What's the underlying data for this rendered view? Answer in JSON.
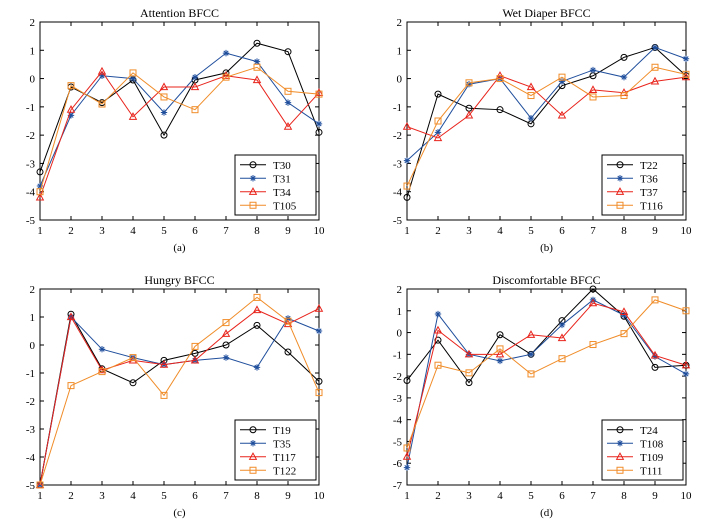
{
  "chart_data": [
    {
      "type": "line",
      "title": "Attention BFCC",
      "caption": "(a)",
      "xlabel": "",
      "ylabel": "",
      "x": [
        1,
        2,
        3,
        4,
        5,
        6,
        7,
        8,
        9,
        10
      ],
      "xlim": [
        1,
        10
      ],
      "ylim": [
        -5,
        2
      ],
      "xticks": [
        1,
        2,
        3,
        4,
        5,
        6,
        7,
        8,
        9,
        10
      ],
      "yticks": [
        2,
        1,
        0,
        -1,
        -2,
        -3,
        -4,
        -5
      ],
      "legend_position": "bottom-right",
      "series": [
        {
          "name": "T30",
          "color": "#000000",
          "marker": "circle",
          "values": [
            -3.3,
            -0.3,
            -0.85,
            -0.05,
            -2.0,
            -0.05,
            0.2,
            1.25,
            0.95,
            -1.9
          ]
        },
        {
          "name": "T31",
          "color": "#1f4e9c",
          "marker": "star",
          "values": [
            -3.8,
            -1.3,
            0.1,
            0.0,
            -1.2,
            0.05,
            0.9,
            0.6,
            -0.85,
            -1.6
          ]
        },
        {
          "name": "T34",
          "color": "#e8231b",
          "marker": "triangle",
          "values": [
            -4.2,
            -1.1,
            0.25,
            -1.35,
            -0.3,
            -0.3,
            0.1,
            -0.05,
            -1.7,
            -0.5
          ]
        },
        {
          "name": "T105",
          "color": "#f08c28",
          "marker": "square",
          "values": [
            -4.0,
            -0.25,
            -0.9,
            0.2,
            -0.65,
            -1.1,
            0.05,
            0.4,
            -0.45,
            -0.55
          ]
        }
      ]
    },
    {
      "type": "line",
      "title": "Wet Diaper BFCC",
      "caption": "(b)",
      "xlabel": "",
      "ylabel": "",
      "x": [
        1,
        2,
        3,
        4,
        5,
        6,
        7,
        8,
        9,
        10
      ],
      "xlim": [
        1,
        10
      ],
      "ylim": [
        -5,
        2
      ],
      "xticks": [
        1,
        2,
        3,
        4,
        5,
        6,
        7,
        8,
        9,
        10
      ],
      "yticks": [
        2,
        1,
        0,
        -1,
        -2,
        -3,
        -4,
        -5
      ],
      "legend_position": "bottom-right",
      "series": [
        {
          "name": "T22",
          "color": "#000000",
          "marker": "circle",
          "values": [
            -4.2,
            -0.55,
            -1.05,
            -1.1,
            -1.6,
            -0.25,
            0.1,
            0.75,
            1.1,
            0.1
          ]
        },
        {
          "name": "T36",
          "color": "#1f4e9c",
          "marker": "star",
          "values": [
            -2.9,
            -1.9,
            -0.2,
            0.0,
            -1.4,
            -0.1,
            0.3,
            0.05,
            1.1,
            0.7
          ]
        },
        {
          "name": "T37",
          "color": "#e8231b",
          "marker": "triangle",
          "values": [
            -1.7,
            -2.1,
            -1.3,
            0.1,
            -0.3,
            -1.3,
            -0.4,
            -0.5,
            -0.1,
            0.05
          ]
        },
        {
          "name": "T116",
          "color": "#f08c28",
          "marker": "square",
          "values": [
            -3.8,
            -1.5,
            -0.15,
            0.0,
            -0.6,
            0.05,
            -0.65,
            -0.6,
            0.4,
            0.15
          ]
        }
      ]
    },
    {
      "type": "line",
      "title": "Hungry BFCC",
      "caption": "(c)",
      "xlabel": "",
      "ylabel": "",
      "x": [
        1,
        2,
        3,
        4,
        5,
        6,
        7,
        8,
        9,
        10
      ],
      "xlim": [
        1,
        10
      ],
      "ylim": [
        -5,
        2
      ],
      "xticks": [
        1,
        2,
        3,
        4,
        5,
        6,
        7,
        8,
        9,
        10
      ],
      "yticks": [
        2,
        1,
        0,
        -1,
        -2,
        -3,
        -4,
        -5
      ],
      "legend_position": "bottom-right",
      "series": [
        {
          "name": "T19",
          "color": "#000000",
          "marker": "circle",
          "values": [
            -5.0,
            1.1,
            -0.85,
            -1.35,
            -0.55,
            -0.3,
            0.0,
            0.7,
            -0.25,
            -1.3
          ]
        },
        {
          "name": "T35",
          "color": "#1f4e9c",
          "marker": "star",
          "values": [
            -5.0,
            1.0,
            -0.15,
            -0.45,
            -0.7,
            -0.55,
            -0.45,
            -0.8,
            0.95,
            0.5
          ]
        },
        {
          "name": "T117",
          "color": "#e8231b",
          "marker": "triangle",
          "values": [
            -5.0,
            1.0,
            -0.9,
            -0.55,
            -0.7,
            -0.55,
            0.4,
            1.25,
            0.75,
            1.3
          ]
        },
        {
          "name": "T122",
          "color": "#f08c28",
          "marker": "square",
          "values": [
            -5.0,
            -1.45,
            -0.95,
            -0.45,
            -1.8,
            -0.05,
            0.8,
            1.7,
            0.85,
            -1.7
          ]
        }
      ]
    },
    {
      "type": "line",
      "title": "Discomfortable BFCC",
      "caption": "(d)",
      "xlabel": "",
      "ylabel": "",
      "x": [
        1,
        2,
        3,
        4,
        5,
        6,
        7,
        8,
        9,
        10
      ],
      "xlim": [
        1,
        10
      ],
      "ylim": [
        -7,
        2
      ],
      "xticks": [
        1,
        2,
        3,
        4,
        5,
        6,
        7,
        8,
        9,
        10
      ],
      "yticks": [
        2,
        1,
        0,
        -1,
        -2,
        -3,
        -4,
        -5,
        -6,
        -7
      ],
      "legend_position": "bottom-right",
      "series": [
        {
          "name": "T24",
          "color": "#000000",
          "marker": "circle",
          "values": [
            -2.2,
            -0.35,
            -2.3,
            -0.1,
            -1.0,
            0.55,
            2.0,
            0.75,
            -1.6,
            -1.5
          ]
        },
        {
          "name": "T108",
          "color": "#1f4e9c",
          "marker": "star",
          "values": [
            -6.2,
            0.85,
            -1.0,
            -1.3,
            -1.0,
            0.35,
            1.5,
            0.8,
            -1.1,
            -1.9
          ]
        },
        {
          "name": "T109",
          "color": "#e8231b",
          "marker": "triangle",
          "values": [
            -5.7,
            0.1,
            -1.0,
            -1.0,
            -0.1,
            -0.25,
            1.35,
            0.95,
            -1.05,
            -1.5
          ]
        },
        {
          "name": "T111",
          "color": "#f08c28",
          "marker": "square",
          "values": [
            -5.3,
            -1.5,
            -1.85,
            -0.75,
            -1.9,
            -1.2,
            -0.55,
            -0.05,
            1.5,
            1.0
          ]
        }
      ]
    }
  ]
}
